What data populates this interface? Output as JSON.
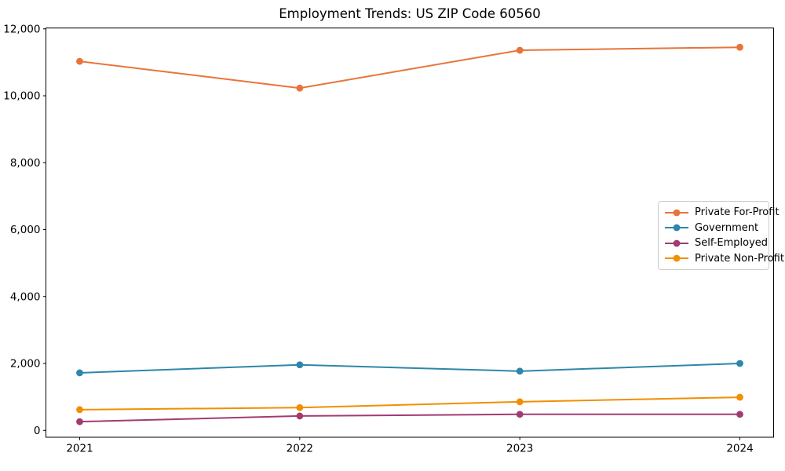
{
  "title": "Employment Trends: US ZIP Code 60560",
  "chart_data": {
    "type": "line",
    "title": "Employment Trends: US ZIP Code 60560",
    "categories": [
      "2021",
      "2022",
      "2023",
      "2024"
    ],
    "series": [
      {
        "name": "Private For-Profit",
        "color": "#E8743B",
        "values": [
          11030,
          10230,
          11360,
          11450
        ]
      },
      {
        "name": "Government",
        "color": "#2E86AB",
        "values": [
          1720,
          1960,
          1770,
          2000
        ]
      },
      {
        "name": "Self-Employed",
        "color": "#A23B72",
        "values": [
          260,
          430,
          480,
          480
        ]
      },
      {
        "name": "Private Non-Profit",
        "color": "#F18F01",
        "values": [
          620,
          680,
          855,
          990
        ]
      }
    ],
    "xlabel": "",
    "ylabel": "",
    "ylim": [
      -205,
      12025
    ],
    "y_ticks": [
      0,
      2000,
      4000,
      6000,
      8000,
      10000,
      12000
    ],
    "y_tick_labels": [
      "0",
      "2,000",
      "4,000",
      "6,000",
      "8,000",
      "10,000",
      "12,000"
    ],
    "grid": false,
    "legend_position": "center right",
    "marker": "circle",
    "axis_color": "#000000"
  }
}
